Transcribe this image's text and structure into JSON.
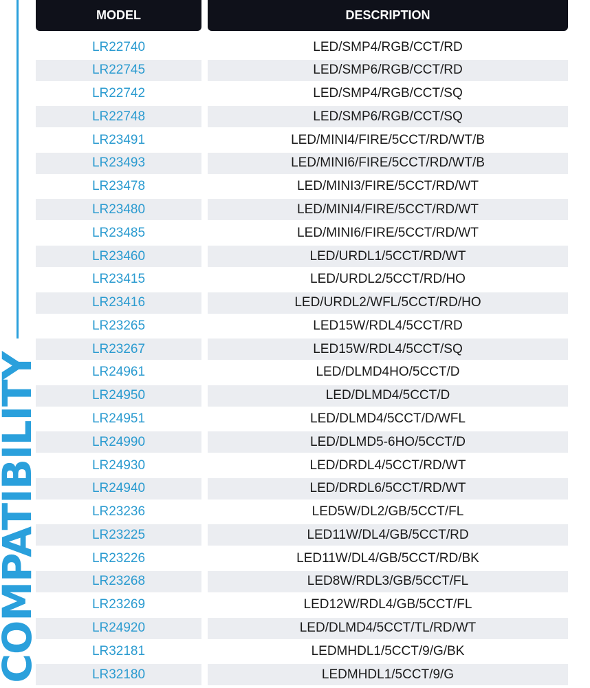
{
  "side_label": "COMPATIBILITY",
  "colors": {
    "accent": "#2aa0dc",
    "model_text": "#2b9bd0",
    "header_bg": "#0f111a",
    "stripe": "#ebedf1"
  },
  "table": {
    "headers": [
      "MODEL",
      "DESCRIPTION"
    ],
    "rows": [
      [
        "LR22740",
        "LED/SMP4/RGB/CCT/RD"
      ],
      [
        "LR22745",
        "LED/SMP6/RGB/CCT/RD"
      ],
      [
        "LR22742",
        "LED/SMP4/RGB/CCT/SQ"
      ],
      [
        "LR22748",
        "LED/SMP6/RGB/CCT/SQ"
      ],
      [
        "LR23491",
        "LED/MINI4/FIRE/5CCT/RD/WT/B"
      ],
      [
        "LR23493",
        "LED/MINI6/FIRE/5CCT/RD/WT/B"
      ],
      [
        "LR23478",
        "LED/MINI3/FIRE/5CCT/RD/WT"
      ],
      [
        "LR23480",
        "LED/MINI4/FIRE/5CCT/RD/WT"
      ],
      [
        "LR23485",
        "LED/MINI6/FIRE/5CCT/RD/WT"
      ],
      [
        "LR23460",
        "LED/URDL1/5CCT/RD/WT"
      ],
      [
        "LR23415",
        "LED/URDL2/5CCT/RD/HO"
      ],
      [
        "LR23416",
        "LED/URDL2/WFL/5CCT/RD/HO"
      ],
      [
        "LR23265",
        "LED15W/RDL4/5CCT/RD"
      ],
      [
        "LR23267",
        "LED15W/RDL4/5CCT/SQ"
      ],
      [
        "LR24961",
        "LED/DLMD4HO/5CCT/D"
      ],
      [
        "LR24950",
        "LED/DLMD4/5CCT/D"
      ],
      [
        "LR24951",
        "LED/DLMD4/5CCT/D/WFL"
      ],
      [
        "LR24990",
        "LED/DLMD5-6HO/5CCT/D"
      ],
      [
        "LR24930",
        "LED/DRDL4/5CCT/RD/WT"
      ],
      [
        "LR24940",
        "LED/DRDL6/5CCT/RD/WT"
      ],
      [
        "LR23236",
        "LED5W/DL2/GB/5CCT/FL"
      ],
      [
        "LR23225",
        "LED11W/DL4/GB/5CCT/RD"
      ],
      [
        "LR23226",
        "LED11W/DL4/GB/5CCT/RD/BK"
      ],
      [
        "LR23268",
        "LED8W/RDL3/GB/5CCT/FL"
      ],
      [
        "LR23269",
        "LED12W/RDL4/GB/5CCT/FL"
      ],
      [
        "LR24920",
        "LED/DLMD4/5CCT/TL/RD/WT"
      ],
      [
        "LR32181",
        "LEDMHDL1/5CCT/9/G/BK"
      ],
      [
        "LR32180",
        "LEDMHDL1/5CCT/9/G"
      ]
    ]
  }
}
